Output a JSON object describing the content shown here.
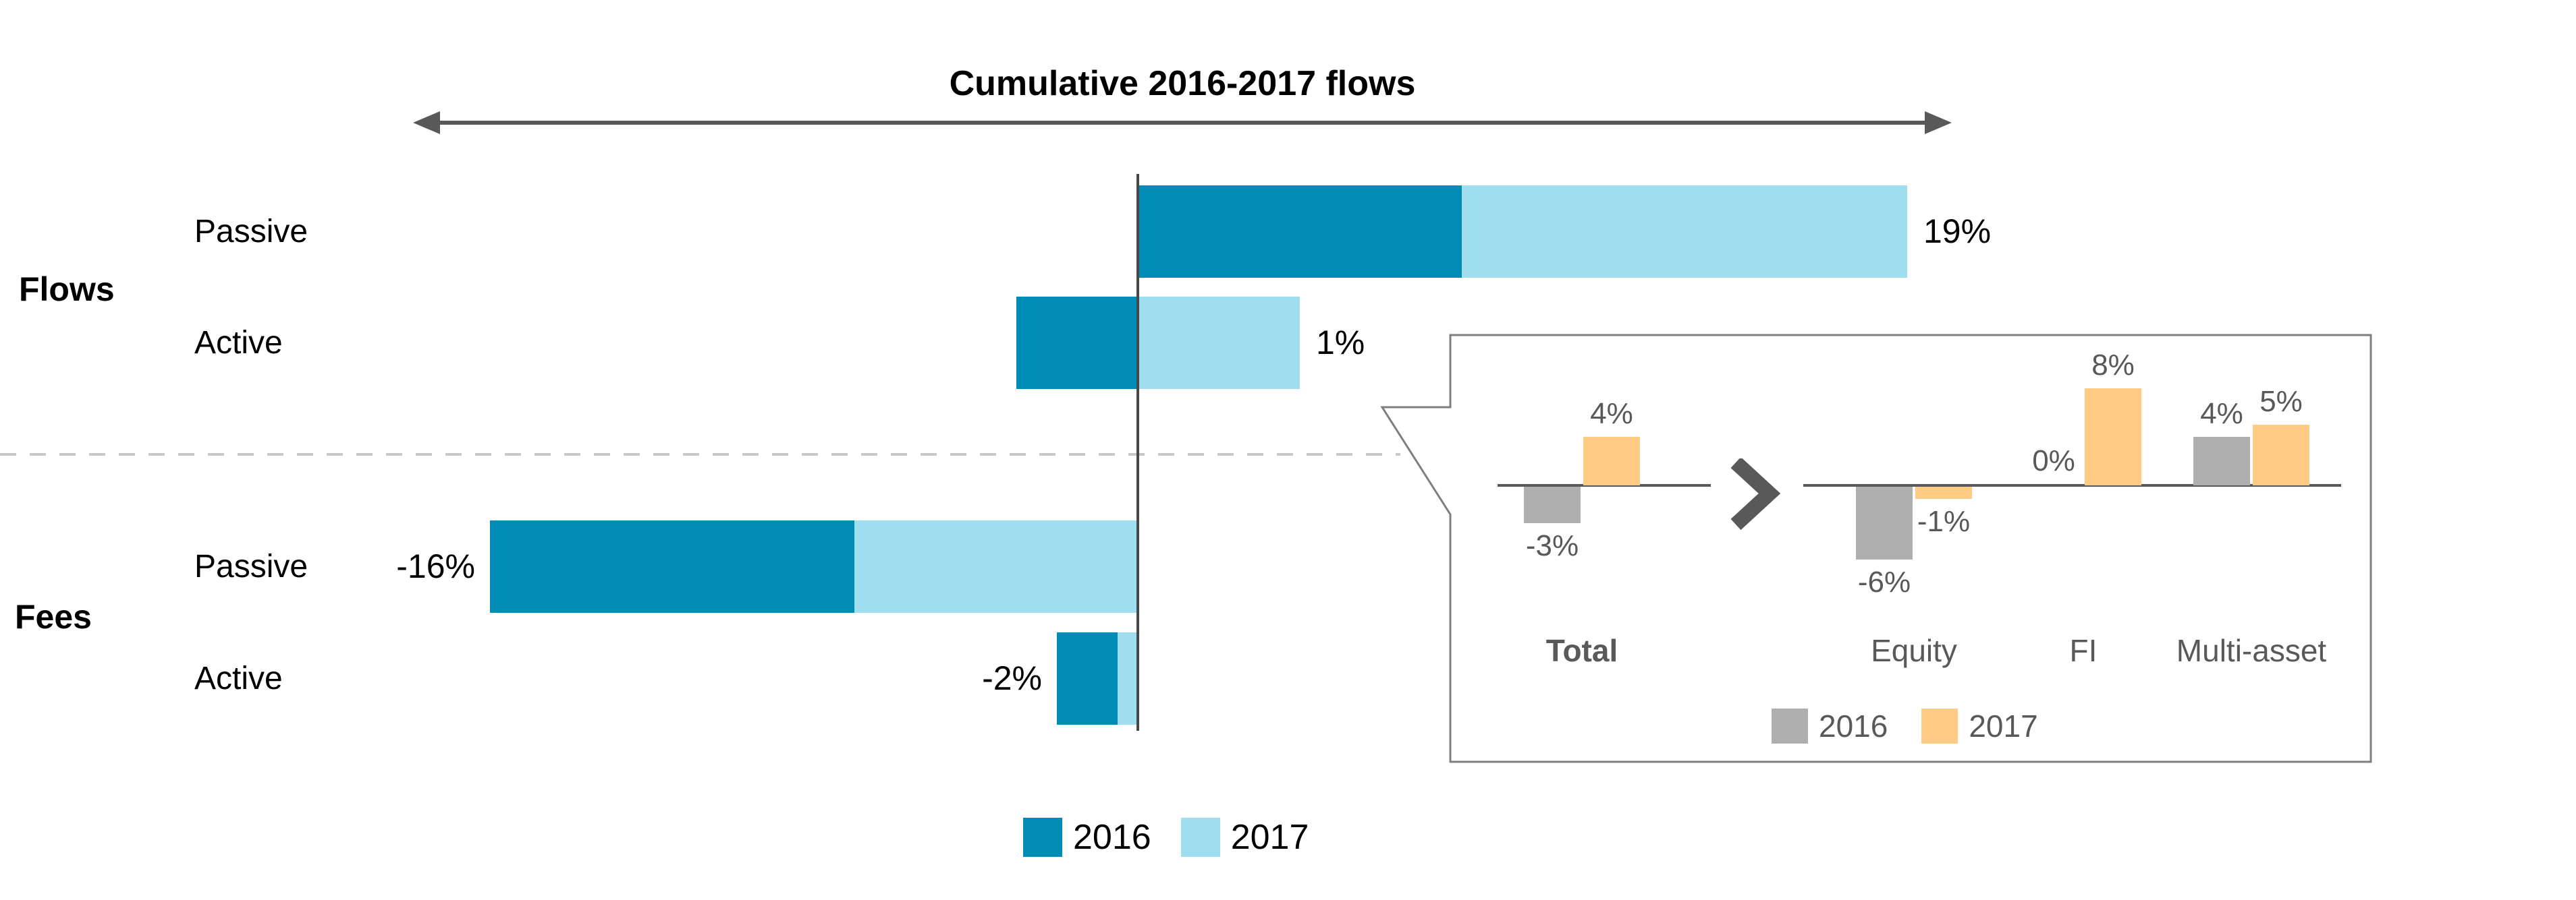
{
  "page": {
    "background": "#FFFFFF"
  },
  "colors": {
    "bar_2016_main": "#008CB4",
    "bar_2017_main": "#9FDEEE",
    "bar_2016_inset": "#AFAFAF",
    "bar_2017_inset": "#FFCB85",
    "axis_line": "#474747",
    "inset_axis_line": "#595959",
    "arrow": "#595959",
    "callout_border": "#7F7F7F",
    "dashed_divider": "#C8C8C8",
    "main_text": "#000000",
    "inset_text": "#595959"
  },
  "chart_data": [
    {
      "type": "bar",
      "orientation": "horizontal",
      "title": "Cumulative 2016-2017 flows",
      "unit": "%",
      "groups": [
        "Flows",
        "Fees"
      ],
      "rows": [
        {
          "group": "Flows",
          "category": "Passive",
          "series": {
            "2016": 8,
            "2017": 11
          },
          "cumulative_label": "19%"
        },
        {
          "group": "Flows",
          "category": "Active",
          "series": {
            "2016": -3,
            "2017": 4
          },
          "cumulative_label": "1%"
        },
        {
          "group": "Fees",
          "category": "Passive",
          "series": {
            "2016": -9,
            "2017": -7
          },
          "cumulative_label": "-16%"
        },
        {
          "group": "Fees",
          "category": "Active",
          "series": {
            "2016": -1.5,
            "2017": -0.5
          },
          "cumulative_label": "-2%"
        }
      ],
      "legend": [
        "2016",
        "2017"
      ],
      "colors": {
        "2016": "#008CB4",
        "2017": "#9FDEEE"
      },
      "annotations": {
        "top_arrow_label": "Cumulative 2016-2017 flows"
      }
    },
    {
      "type": "bar",
      "orientation": "vertical",
      "context": "callout detail of Active flows",
      "unit": "%",
      "categories": [
        "Total",
        "Equity",
        "FI",
        "Multi-asset"
      ],
      "series": [
        {
          "name": "2016",
          "values": [
            -3,
            -6,
            0,
            4
          ]
        },
        {
          "name": "2017",
          "values": [
            4,
            -1,
            8,
            5
          ]
        }
      ],
      "labels": {
        "2016": [
          "-3%",
          "-6%",
          "0%",
          "4%"
        ],
        "2017": [
          "4%",
          "-1%",
          "8%",
          "5%"
        ]
      },
      "legend": [
        "2016",
        "2017"
      ],
      "colors": {
        "2016": "#AFAFAF",
        "2017": "#FFCB85"
      }
    }
  ]
}
